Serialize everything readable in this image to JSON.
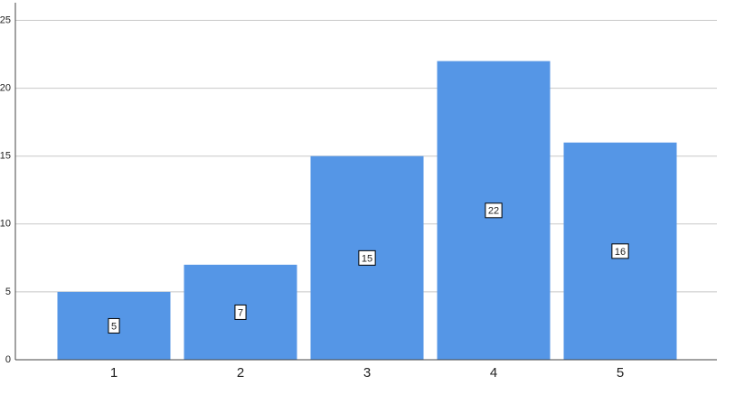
{
  "chart_data": {
    "type": "bar",
    "categories": [
      "1",
      "2",
      "3",
      "4",
      "5"
    ],
    "values": [
      5,
      7,
      15,
      22,
      16
    ],
    "color": "#5596e6",
    "ylim": [
      0,
      26.3
    ],
    "yticks": [
      0,
      5,
      10,
      15,
      20,
      25
    ],
    "grid": true
  }
}
